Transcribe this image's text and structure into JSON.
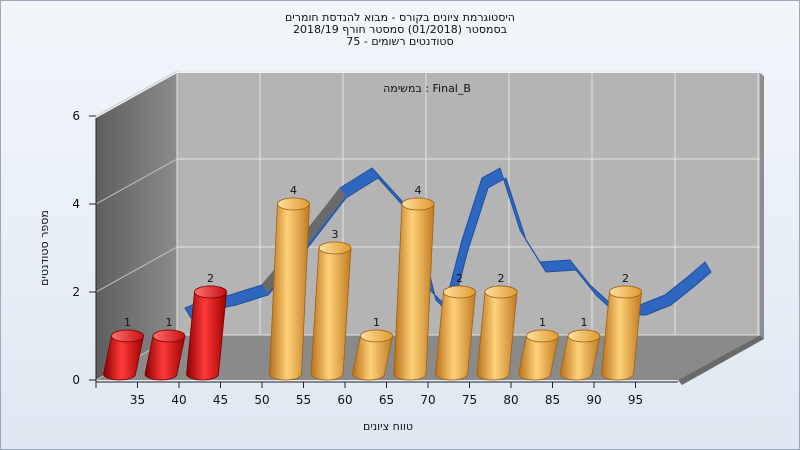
{
  "chart_data": {
    "type": "bar",
    "title_lines": [
      "היסטוגרמת ציונים בקורס - מבוא להנדסת חומרים",
      "בסמסטר  (01/2018)  סמסטר חורף 2018/19",
      "סטודנטים רשומים - 75"
    ],
    "subtitle": "במשימה : Final_B",
    "xlabel": "טווח ציונים",
    "ylabel": "מספר סטודנטים",
    "x_ticks": [
      "35",
      "40",
      "45",
      "50",
      "55",
      "60",
      "65",
      "70",
      "75",
      "80",
      "85",
      "90",
      "95"
    ],
    "y_ticks": [
      "0",
      "2",
      "4",
      "6"
    ],
    "ylim": [
      0,
      6
    ],
    "grid": true,
    "bars": [
      {
        "x": 35,
        "value": 1,
        "label": "1",
        "color": "red"
      },
      {
        "x": 40,
        "value": 1,
        "label": "1",
        "color": "red"
      },
      {
        "x": 45,
        "value": 2,
        "label": "2",
        "color": "red"
      },
      {
        "x": 55,
        "value": 4,
        "label": "4",
        "color": "orange"
      },
      {
        "x": 60,
        "value": 3,
        "label": "3",
        "color": "orange"
      },
      {
        "x": 65,
        "value": 1,
        "label": "1",
        "color": "orange"
      },
      {
        "x": 70,
        "value": 4,
        "label": "4",
        "color": "orange"
      },
      {
        "x": 75,
        "value": 2,
        "label": "2",
        "color": "orange"
      },
      {
        "x": 80,
        "value": 2,
        "label": "2",
        "color": "orange"
      },
      {
        "x": 85,
        "value": 1,
        "label": "1",
        "color": "orange"
      },
      {
        "x": 90,
        "value": 1,
        "label": "1",
        "color": "orange"
      },
      {
        "x": 95,
        "value": 2,
        "label": "2",
        "color": "orange"
      }
    ],
    "colors": {
      "red_bar": "#e01818",
      "orange_bar": "#e8a030",
      "curve": "#2e66c0",
      "wall": "#b4b4b4",
      "side_wall": "#6e6e6e",
      "floor": "#8a8a8a"
    }
  }
}
